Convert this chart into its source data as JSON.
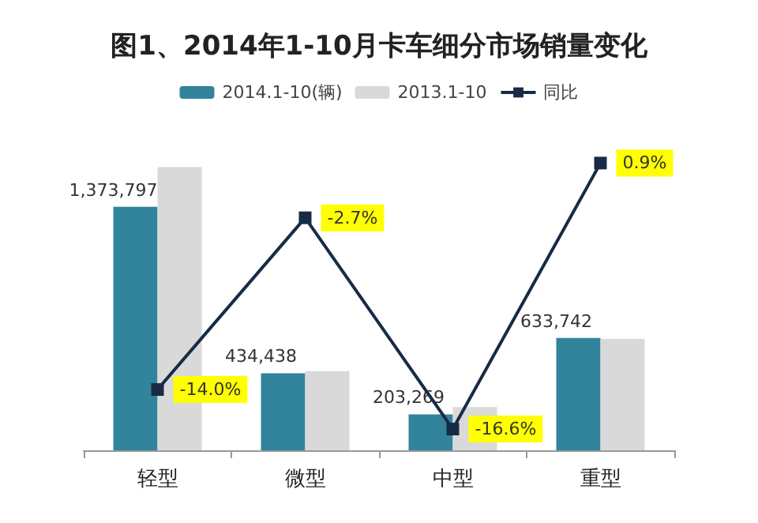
{
  "chart_data": {
    "type": "bar",
    "title": "图1、2014年1-10月卡车细分市场销量变化",
    "categories": [
      "轻型",
      "微型",
      "中型",
      "重型"
    ],
    "series": [
      {
        "name": "2014.1-10(辆)",
        "color": "#31849b",
        "values": [
          1373797,
          434438,
          203269,
          633742
        ],
        "value_labels": [
          "1,373,797",
          "434,438",
          "203,269",
          "633,742"
        ]
      },
      {
        "name": "2013.1-10",
        "color": "#d9d9d9",
        "values": [
          1597000,
          446500,
          243700,
          628100
        ]
      },
      {
        "name": "同比",
        "type": "line",
        "axis": "y2",
        "color": "#172b45",
        "values": [
          -14.0,
          -2.7,
          -16.6,
          0.9
        ],
        "value_labels": [
          "-14.0%",
          "-2.7%",
          "-16.6%",
          "0.9%"
        ],
        "marker": "square"
      }
    ],
    "legend": "top",
    "tick_labels": "x"
  }
}
